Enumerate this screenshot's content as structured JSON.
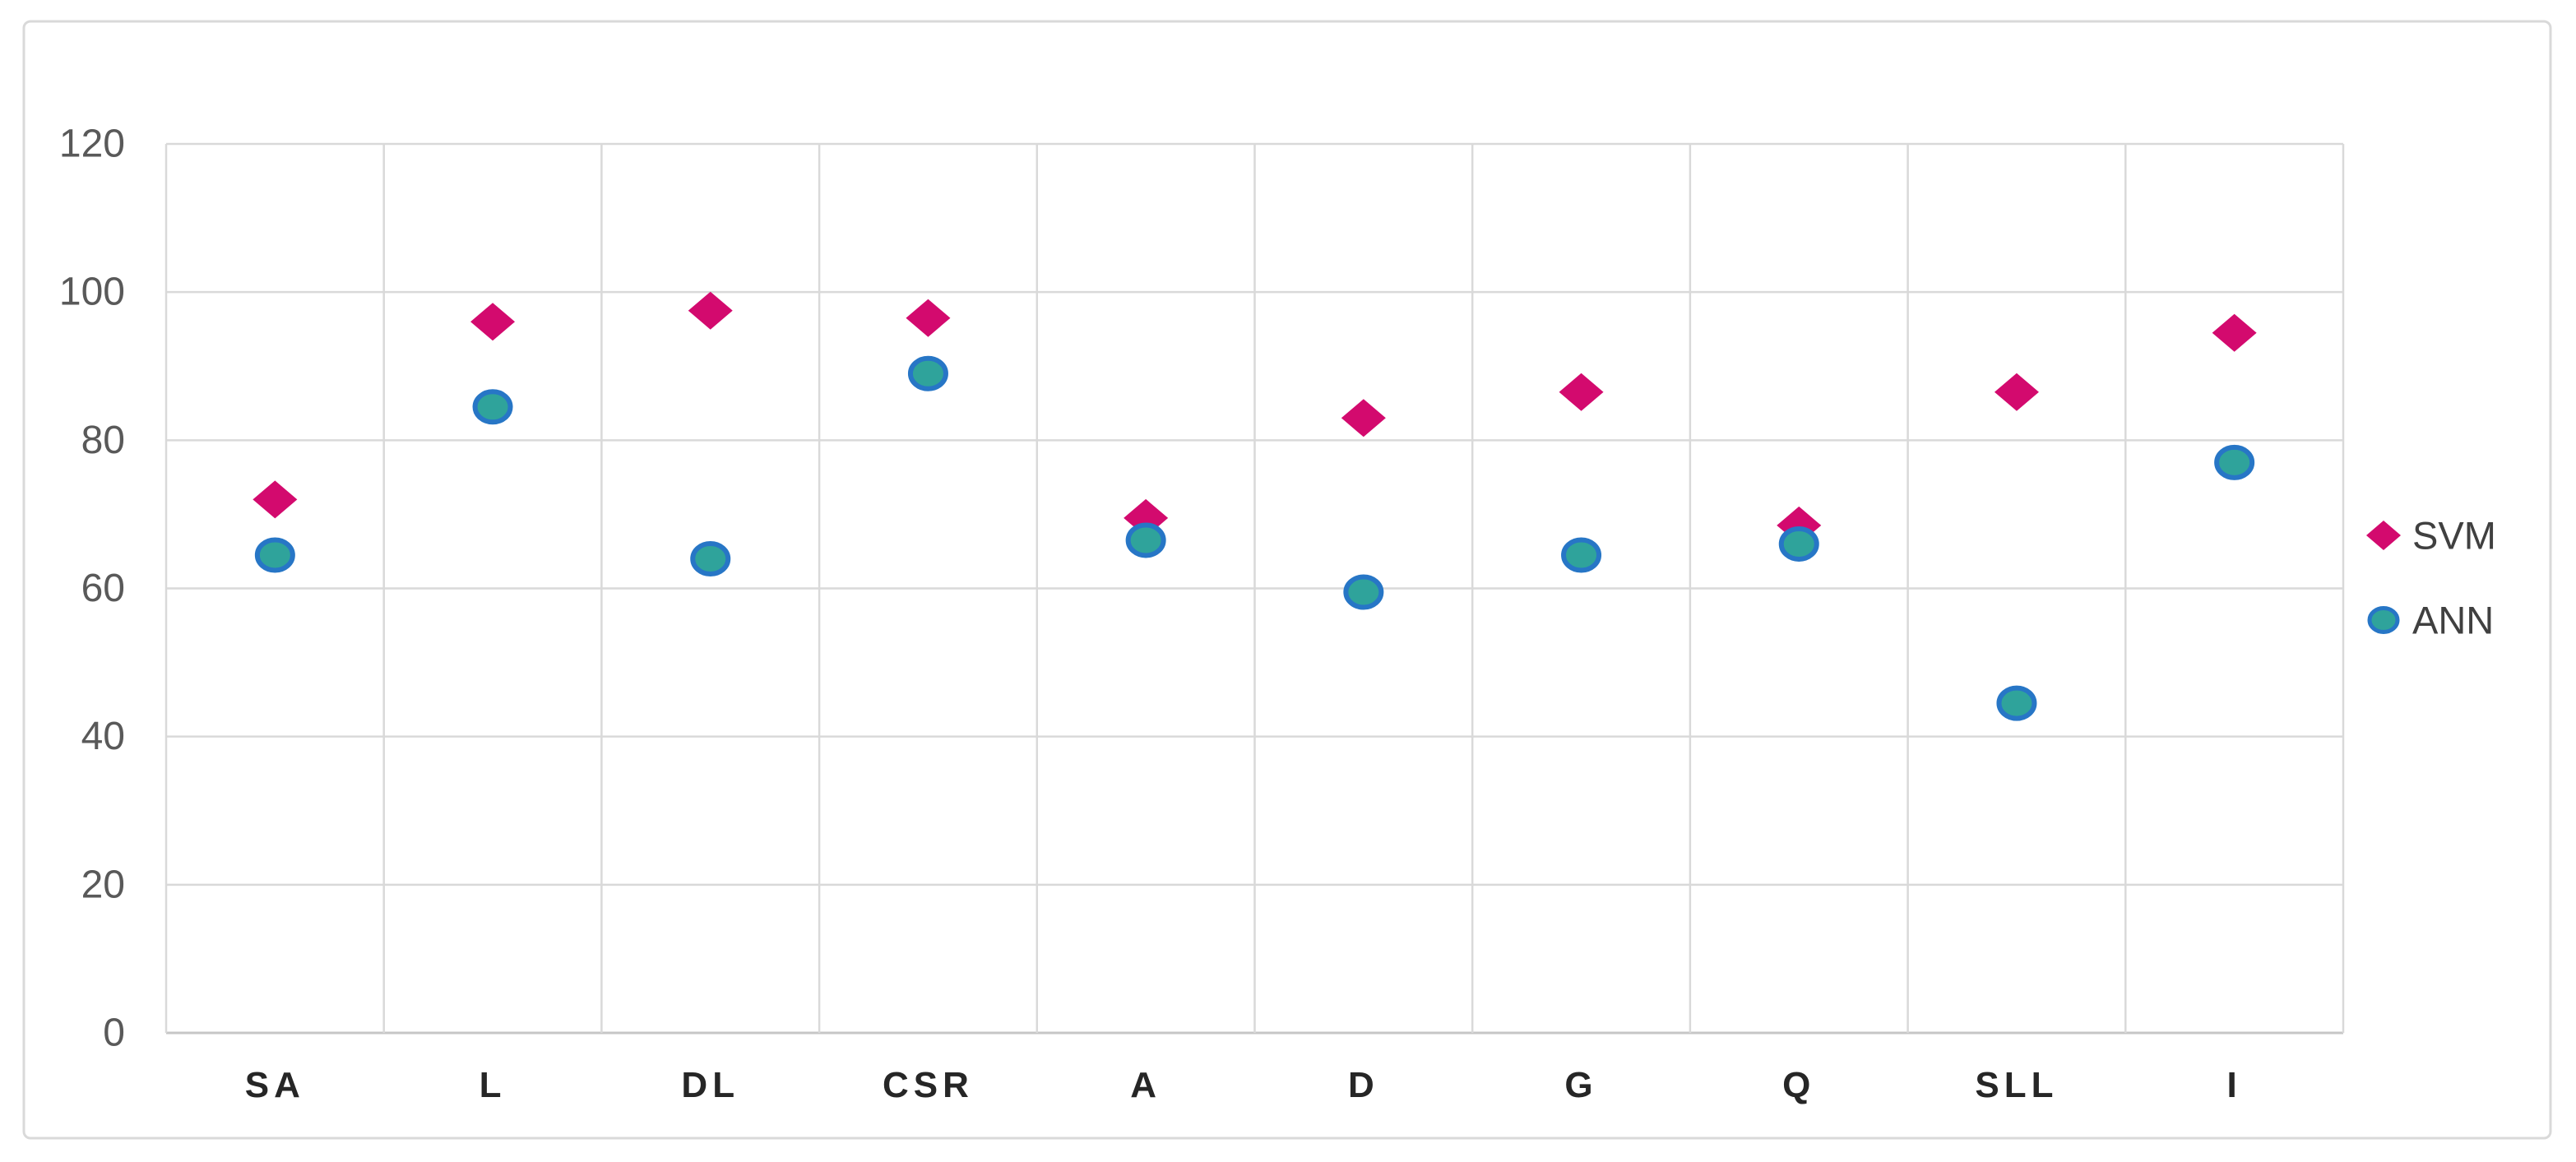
{
  "chart_data": {
    "type": "scatter",
    "title": "",
    "xlabel": "",
    "ylabel": "",
    "categories": [
      "SA",
      "L",
      "DL",
      "CSR",
      "A",
      "D",
      "G",
      "Q",
      "SLL",
      "I"
    ],
    "series": [
      {
        "name": "SVM",
        "marker": "diamond",
        "color": "#D30A6E",
        "values": [
          72,
          96,
          97.5,
          96.5,
          69.5,
          83,
          86.5,
          68.5,
          86.5,
          94.5
        ]
      },
      {
        "name": "ANN",
        "marker": "circle",
        "fill": "#2FA39B",
        "stroke": "#2776C6",
        "values": [
          64.5,
          84.5,
          64,
          89,
          66.5,
          59.5,
          64.5,
          66,
          44.5,
          77
        ]
      }
    ],
    "ylim": [
      0,
      120
    ],
    "yticks": [
      0,
      20,
      40,
      60,
      80,
      100,
      120
    ],
    "grid": true,
    "legend_position": "right",
    "legend_labels": [
      "SVM",
      "ANN"
    ]
  },
  "style": {
    "background": "#FFFFFF",
    "frame_border_color": "#D9D9D9",
    "grid_color": "#D9D9D9",
    "axis_line_color": "#C6C6C6",
    "tick_label_color": "#595959",
    "category_label_color": "#262626",
    "legend_text_color": "#404040"
  }
}
